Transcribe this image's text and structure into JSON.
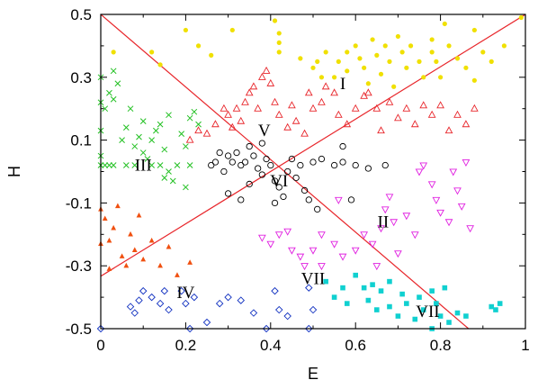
{
  "chart_data": {
    "type": "scatter",
    "title": "",
    "xlabel": "E",
    "ylabel": "H",
    "xlim": [
      0,
      1
    ],
    "ylim": [
      -0.5,
      0.5
    ],
    "xticks": [
      "0",
      "0.2",
      "0.4",
      "0.6",
      "0.8",
      "1"
    ],
    "xtick_values": [
      0,
      0.2,
      0.4,
      0.6,
      0.8,
      1
    ],
    "yticks": [
      "0.5",
      "0.3",
      "0.1",
      "-0.1",
      "-0.3",
      "-0.5"
    ],
    "ytick_values": [
      0.5,
      0.3,
      0.1,
      -0.1,
      -0.3,
      -0.5
    ],
    "grid": false,
    "legend": "none",
    "lines": [
      {
        "color": "#e8262b",
        "x": [
          0,
          0.866
        ],
        "y": [
          0.5,
          -0.5
        ]
      },
      {
        "color": "#e8262b",
        "x": [
          0,
          1
        ],
        "y": [
          -0.333,
          0.5
        ]
      }
    ],
    "region_labels": [
      {
        "text": "I",
        "x": 0.57,
        "y": 0.275
      },
      {
        "text": "II",
        "x": 0.665,
        "y": -0.165
      },
      {
        "text": "III",
        "x": 0.1,
        "y": 0.015
      },
      {
        "text": "IV",
        "x": 0.2,
        "y": -0.39
      },
      {
        "text": "V",
        "x": 0.385,
        "y": 0.125
      },
      {
        "text": "VI",
        "x": 0.42,
        "y": -0.035
      },
      {
        "text": "VII",
        "x": 0.5,
        "y": -0.345
      },
      {
        "text": "VII",
        "x": 0.77,
        "y": -0.45
      }
    ],
    "series": [
      {
        "marker": "circle-filled",
        "color": "#f0e000",
        "points": [
          [
            0.03,
            0.38
          ],
          [
            0.12,
            0.38
          ],
          [
            0.14,
            0.34
          ],
          [
            0.2,
            0.45
          ],
          [
            0.23,
            0.4
          ],
          [
            0.26,
            0.37
          ],
          [
            0.31,
            0.45
          ],
          [
            0.41,
            0.48
          ],
          [
            0.42,
            0.44
          ],
          [
            0.42,
            0.41
          ],
          [
            0.42,
            0.38
          ],
          [
            0.47,
            0.36
          ],
          [
            0.5,
            0.33
          ],
          [
            0.51,
            0.35
          ],
          [
            0.52,
            0.3
          ],
          [
            0.53,
            0.38
          ],
          [
            0.55,
            0.3
          ],
          [
            0.56,
            0.35
          ],
          [
            0.58,
            0.32
          ],
          [
            0.58,
            0.38
          ],
          [
            0.6,
            0.4
          ],
          [
            0.61,
            0.36
          ],
          [
            0.62,
            0.33
          ],
          [
            0.63,
            0.28
          ],
          [
            0.64,
            0.42
          ],
          [
            0.65,
            0.37
          ],
          [
            0.66,
            0.31
          ],
          [
            0.67,
            0.4
          ],
          [
            0.68,
            0.35
          ],
          [
            0.69,
            0.27
          ],
          [
            0.7,
            0.43
          ],
          [
            0.71,
            0.38
          ],
          [
            0.72,
            0.33
          ],
          [
            0.73,
            0.4
          ],
          [
            0.75,
            0.35
          ],
          [
            0.76,
            0.3
          ],
          [
            0.78,
            0.42
          ],
          [
            0.78,
            0.38
          ],
          [
            0.79,
            0.35
          ],
          [
            0.8,
            0.3
          ],
          [
            0.81,
            0.47
          ],
          [
            0.82,
            0.4
          ],
          [
            0.84,
            0.36
          ],
          [
            0.86,
            0.33
          ],
          [
            0.88,
            0.45
          ],
          [
            0.9,
            0.38
          ],
          [
            0.92,
            0.35
          ],
          [
            0.95,
            0.4
          ],
          [
            0.99,
            0.49
          ],
          [
            0.88,
            0.29
          ]
        ]
      },
      {
        "marker": "triangle-up",
        "color": "#e8262b",
        "points": [
          [
            0.21,
            0.1
          ],
          [
            0.23,
            0.13
          ],
          [
            0.25,
            0.12
          ],
          [
            0.27,
            0.15
          ],
          [
            0.29,
            0.2
          ],
          [
            0.3,
            0.18
          ],
          [
            0.31,
            0.14
          ],
          [
            0.32,
            0.2
          ],
          [
            0.33,
            0.16
          ],
          [
            0.34,
            0.22
          ],
          [
            0.35,
            0.25
          ],
          [
            0.36,
            0.27
          ],
          [
            0.37,
            0.2
          ],
          [
            0.38,
            0.3
          ],
          [
            0.39,
            0.32
          ],
          [
            0.4,
            0.28
          ],
          [
            0.41,
            0.22
          ],
          [
            0.42,
            0.18
          ],
          [
            0.44,
            0.14
          ],
          [
            0.46,
            0.16
          ],
          [
            0.48,
            0.12
          ],
          [
            0.5,
            0.2
          ],
          [
            0.52,
            0.22
          ],
          [
            0.53,
            0.27
          ],
          [
            0.55,
            0.25
          ],
          [
            0.56,
            0.18
          ],
          [
            0.58,
            0.15
          ],
          [
            0.6,
            0.2
          ],
          [
            0.62,
            0.24
          ],
          [
            0.63,
            0.25
          ],
          [
            0.65,
            0.2
          ],
          [
            0.66,
            0.13
          ],
          [
            0.68,
            0.22
          ],
          [
            0.7,
            0.17
          ],
          [
            0.72,
            0.2
          ],
          [
            0.74,
            0.15
          ],
          [
            0.76,
            0.21
          ],
          [
            0.78,
            0.18
          ],
          [
            0.8,
            0.21
          ],
          [
            0.82,
            0.13
          ],
          [
            0.84,
            0.18
          ],
          [
            0.86,
            0.15
          ],
          [
            0.88,
            0.2
          ],
          [
            0.49,
            0.25
          ],
          [
            0.45,
            0.21
          ]
        ]
      },
      {
        "marker": "cross",
        "color": "#22c022",
        "points": [
          [
            0.0,
            0.3
          ],
          [
            0.0,
            0.22
          ],
          [
            0.01,
            0.2
          ],
          [
            0.0,
            0.13
          ],
          [
            0.0,
            0.05
          ],
          [
            0.0,
            0.02
          ],
          [
            0.01,
            0.02
          ],
          [
            0.02,
            0.02
          ],
          [
            0.03,
            0.02
          ],
          [
            0.02,
            0.25
          ],
          [
            0.03,
            0.23
          ],
          [
            0.04,
            0.28
          ],
          [
            0.03,
            0.32
          ],
          [
            0.05,
            0.1
          ],
          [
            0.06,
            0.14
          ],
          [
            0.07,
            0.2
          ],
          [
            0.08,
            0.08
          ],
          [
            0.09,
            0.11
          ],
          [
            0.1,
            0.16
          ],
          [
            0.1,
            0.06
          ],
          [
            0.11,
            0.04
          ],
          [
            0.12,
            0.1
          ],
          [
            0.13,
            0.13
          ],
          [
            0.14,
            0.15
          ],
          [
            0.14,
            0.02
          ],
          [
            0.15,
            0.07
          ],
          [
            0.16,
            0.18
          ],
          [
            0.16,
            0.0
          ],
          [
            0.17,
            -0.03
          ],
          [
            0.18,
            0.02
          ],
          [
            0.19,
            0.12
          ],
          [
            0.2,
            0.08
          ],
          [
            0.21,
            0.02
          ],
          [
            0.2,
            -0.05
          ],
          [
            0.21,
            0.17
          ],
          [
            0.22,
            0.19
          ],
          [
            0.23,
            0.15
          ],
          [
            0.15,
            -0.02
          ],
          [
            0.12,
            0.02
          ],
          [
            0.08,
            0.02
          ],
          [
            0.06,
            0.02
          ]
        ]
      },
      {
        "marker": "circle-open",
        "color": "#000000",
        "points": [
          [
            0.26,
            0.02
          ],
          [
            0.27,
            0.03
          ],
          [
            0.28,
            0.06
          ],
          [
            0.29,
            0.0
          ],
          [
            0.3,
            0.05
          ],
          [
            0.31,
            0.03
          ],
          [
            0.32,
            0.06
          ],
          [
            0.33,
            0.02
          ],
          [
            0.34,
            0.03
          ],
          [
            0.35,
            0.08
          ],
          [
            0.36,
            0.05
          ],
          [
            0.37,
            0.01
          ],
          [
            0.38,
            -0.01
          ],
          [
            0.39,
            0.04
          ],
          [
            0.4,
            0.02
          ],
          [
            0.41,
            -0.03
          ],
          [
            0.42,
            -0.05
          ],
          [
            0.43,
            -0.08
          ],
          [
            0.44,
            0.0
          ],
          [
            0.45,
            0.04
          ],
          [
            0.46,
            -0.02
          ],
          [
            0.47,
            0.02
          ],
          [
            0.48,
            -0.06
          ],
          [
            0.49,
            -0.09
          ],
          [
            0.5,
            0.03
          ],
          [
            0.52,
            0.04
          ],
          [
            0.55,
            0.02
          ],
          [
            0.57,
            0.03
          ],
          [
            0.6,
            0.02
          ],
          [
            0.63,
            0.01
          ],
          [
            0.67,
            0.02
          ],
          [
            0.33,
            -0.09
          ],
          [
            0.41,
            -0.1
          ],
          [
            0.35,
            -0.04
          ],
          [
            0.38,
            0.09
          ],
          [
            0.3,
            -0.07
          ],
          [
            0.59,
            -0.09
          ],
          [
            0.57,
            0.08
          ],
          [
            0.51,
            -0.12
          ]
        ]
      },
      {
        "marker": "triangle-down",
        "color": "#e020e0",
        "points": [
          [
            0.38,
            -0.21
          ],
          [
            0.4,
            -0.23
          ],
          [
            0.42,
            -0.2
          ],
          [
            0.44,
            -0.19
          ],
          [
            0.45,
            -0.25
          ],
          [
            0.47,
            -0.27
          ],
          [
            0.48,
            -0.3
          ],
          [
            0.5,
            -0.25
          ],
          [
            0.52,
            -0.2
          ],
          [
            0.55,
            -0.23
          ],
          [
            0.57,
            -0.27
          ],
          [
            0.6,
            -0.25
          ],
          [
            0.62,
            -0.2
          ],
          [
            0.64,
            -0.23
          ],
          [
            0.66,
            -0.18
          ],
          [
            0.67,
            -0.12
          ],
          [
            0.68,
            -0.08
          ],
          [
            0.69,
            -0.16
          ],
          [
            0.7,
            -0.26
          ],
          [
            0.72,
            -0.14
          ],
          [
            0.74,
            -0.2
          ],
          [
            0.75,
            0.0
          ],
          [
            0.76,
            0.02
          ],
          [
            0.78,
            -0.04
          ],
          [
            0.79,
            -0.09
          ],
          [
            0.8,
            -0.13
          ],
          [
            0.82,
            -0.16
          ],
          [
            0.83,
            0.0
          ],
          [
            0.84,
            -0.06
          ],
          [
            0.85,
            -0.11
          ],
          [
            0.86,
            0.03
          ],
          [
            0.87,
            -0.18
          ],
          [
            0.52,
            -0.3
          ],
          [
            0.65,
            -0.3
          ],
          [
            0.56,
            -0.09
          ]
        ]
      },
      {
        "marker": "triangle-up-filled",
        "color": "#f05010",
        "points": [
          [
            0.0,
            -0.12
          ],
          [
            0.01,
            -0.15
          ],
          [
            0.02,
            -0.22
          ],
          [
            0.03,
            -0.18
          ],
          [
            0.04,
            -0.11
          ],
          [
            0.05,
            -0.27
          ],
          [
            0.06,
            -0.3
          ],
          [
            0.07,
            -0.2
          ],
          [
            0.08,
            -0.25
          ],
          [
            0.09,
            -0.14
          ],
          [
            0.1,
            -0.28
          ],
          [
            0.12,
            -0.22
          ],
          [
            0.14,
            -0.3
          ],
          [
            0.16,
            -0.24
          ],
          [
            0.18,
            -0.33
          ],
          [
            0.21,
            -0.29
          ],
          [
            0.0,
            -0.23
          ],
          [
            0.02,
            -0.31
          ]
        ]
      },
      {
        "marker": "diamond-open",
        "color": "#1030c0",
        "points": [
          [
            0.0,
            -0.5
          ],
          [
            0.07,
            -0.43
          ],
          [
            0.08,
            -0.45
          ],
          [
            0.09,
            -0.41
          ],
          [
            0.1,
            -0.38
          ],
          [
            0.12,
            -0.4
          ],
          [
            0.14,
            -0.42
          ],
          [
            0.15,
            -0.38
          ],
          [
            0.16,
            -0.44
          ],
          [
            0.19,
            -0.38
          ],
          [
            0.2,
            -0.42
          ],
          [
            0.21,
            -0.5
          ],
          [
            0.22,
            -0.4
          ],
          [
            0.25,
            -0.48
          ],
          [
            0.28,
            -0.42
          ],
          [
            0.3,
            -0.4
          ],
          [
            0.33,
            -0.41
          ],
          [
            0.36,
            -0.45
          ],
          [
            0.39,
            -0.5
          ],
          [
            0.41,
            -0.38
          ],
          [
            0.42,
            -0.44
          ],
          [
            0.44,
            -0.46
          ],
          [
            0.49,
            -0.37
          ],
          [
            0.49,
            -0.5
          ],
          [
            0.5,
            -0.44
          ]
        ]
      },
      {
        "marker": "square-filled",
        "color": "#10d0d0",
        "points": [
          [
            0.53,
            -0.35
          ],
          [
            0.55,
            -0.4
          ],
          [
            0.57,
            -0.37
          ],
          [
            0.58,
            -0.42
          ],
          [
            0.6,
            -0.33
          ],
          [
            0.62,
            -0.37
          ],
          [
            0.63,
            -0.41
          ],
          [
            0.65,
            -0.44
          ],
          [
            0.66,
            -0.38
          ],
          [
            0.68,
            -0.43
          ],
          [
            0.7,
            -0.46
          ],
          [
            0.71,
            -0.39
          ],
          [
            0.72,
            -0.42
          ],
          [
            0.74,
            -0.47
          ],
          [
            0.75,
            -0.4
          ],
          [
            0.76,
            -0.44
          ],
          [
            0.78,
            -0.38
          ],
          [
            0.79,
            -0.42
          ],
          [
            0.8,
            -0.46
          ],
          [
            0.81,
            -0.37
          ],
          [
            0.82,
            -0.48
          ],
          [
            0.64,
            -0.36
          ],
          [
            0.68,
            -0.35
          ],
          [
            0.86,
            -0.46
          ],
          [
            0.92,
            -0.43
          ],
          [
            0.93,
            -0.44
          ],
          [
            0.94,
            -0.42
          ],
          [
            0.78,
            -0.5
          ],
          [
            0.84,
            -0.45
          ]
        ]
      }
    ]
  }
}
